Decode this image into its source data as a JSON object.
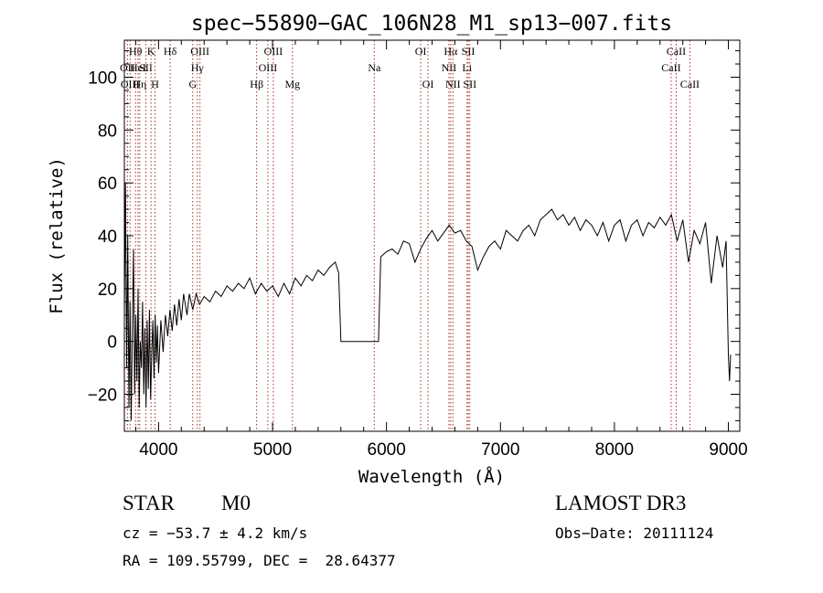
{
  "chart_data": {
    "type": "line",
    "title": "spec−55890−GAC_106N28_M1_sp13−007.fits",
    "xlabel": "Wavelength (Å)",
    "ylabel": "Flux (relative)",
    "xlim": [
      3700,
      9100
    ],
    "ylim": [
      -34,
      114
    ],
    "xticks": [
      4000,
      5000,
      6000,
      7000,
      8000,
      9000
    ],
    "yticks": [
      -20,
      0,
      20,
      40,
      60,
      80,
      100
    ],
    "grid": false,
    "series": [
      {
        "color": "#000000",
        "points": [
          [
            3700,
            10
          ],
          [
            3710,
            60
          ],
          [
            3720,
            -10
          ],
          [
            3730,
            40
          ],
          [
            3740,
            -25
          ],
          [
            3750,
            15
          ],
          [
            3760,
            -30
          ],
          [
            3770,
            5
          ],
          [
            3780,
            35
          ],
          [
            3790,
            -20
          ],
          [
            3800,
            10
          ],
          [
            3810,
            -15
          ],
          [
            3820,
            20
          ],
          [
            3830,
            -25
          ],
          [
            3840,
            0
          ],
          [
            3850,
            -10
          ],
          [
            3860,
            15
          ],
          [
            3870,
            -20
          ],
          [
            3880,
            5
          ],
          [
            3890,
            -25
          ],
          [
            3900,
            8
          ],
          [
            3910,
            -18
          ],
          [
            3920,
            12
          ],
          [
            3930,
            -22
          ],
          [
            3940,
            -5
          ],
          [
            3950,
            8
          ],
          [
            3960,
            -14
          ],
          [
            3970,
            10
          ],
          [
            3980,
            -8
          ],
          [
            3990,
            6
          ],
          [
            4000,
            -12
          ],
          [
            4020,
            8
          ],
          [
            4040,
            -4
          ],
          [
            4060,
            10
          ],
          [
            4080,
            2
          ],
          [
            4100,
            12
          ],
          [
            4120,
            4
          ],
          [
            4140,
            14
          ],
          [
            4160,
            6
          ],
          [
            4180,
            16
          ],
          [
            4200,
            8
          ],
          [
            4220,
            18
          ],
          [
            4250,
            10
          ],
          [
            4270,
            18
          ],
          [
            4300,
            12
          ],
          [
            4330,
            18
          ],
          [
            4360,
            14
          ],
          [
            4400,
            17
          ],
          [
            4450,
            15
          ],
          [
            4500,
            19
          ],
          [
            4550,
            17
          ],
          [
            4600,
            21
          ],
          [
            4650,
            19
          ],
          [
            4700,
            22
          ],
          [
            4750,
            20
          ],
          [
            4800,
            24
          ],
          [
            4850,
            18
          ],
          [
            4900,
            22
          ],
          [
            4950,
            19
          ],
          [
            5000,
            21
          ],
          [
            5050,
            17
          ],
          [
            5100,
            22
          ],
          [
            5150,
            18
          ],
          [
            5200,
            24
          ],
          [
            5250,
            21
          ],
          [
            5300,
            25
          ],
          [
            5350,
            23
          ],
          [
            5400,
            27
          ],
          [
            5450,
            25
          ],
          [
            5500,
            28
          ],
          [
            5550,
            30
          ],
          [
            5580,
            26
          ],
          [
            5600,
            0
          ],
          [
            5900,
            0
          ],
          [
            5930,
            0
          ],
          [
            5950,
            32
          ],
          [
            6000,
            34
          ],
          [
            6050,
            35
          ],
          [
            6100,
            33
          ],
          [
            6150,
            38
          ],
          [
            6200,
            37
          ],
          [
            6250,
            30
          ],
          [
            6300,
            35
          ],
          [
            6350,
            39
          ],
          [
            6400,
            42
          ],
          [
            6450,
            38
          ],
          [
            6500,
            41
          ],
          [
            6550,
            44
          ],
          [
            6600,
            41
          ],
          [
            6650,
            42
          ],
          [
            6700,
            38
          ],
          [
            6750,
            36
          ],
          [
            6800,
            27
          ],
          [
            6850,
            32
          ],
          [
            6900,
            36
          ],
          [
            6950,
            38
          ],
          [
            7000,
            35
          ],
          [
            7050,
            42
          ],
          [
            7100,
            40
          ],
          [
            7150,
            38
          ],
          [
            7200,
            42
          ],
          [
            7250,
            44
          ],
          [
            7300,
            40
          ],
          [
            7350,
            46
          ],
          [
            7400,
            48
          ],
          [
            7450,
            50
          ],
          [
            7500,
            46
          ],
          [
            7550,
            48
          ],
          [
            7600,
            44
          ],
          [
            7650,
            47
          ],
          [
            7700,
            42
          ],
          [
            7750,
            46
          ],
          [
            7800,
            44
          ],
          [
            7850,
            40
          ],
          [
            7900,
            45
          ],
          [
            7950,
            38
          ],
          [
            8000,
            44
          ],
          [
            8050,
            46
          ],
          [
            8100,
            38
          ],
          [
            8150,
            44
          ],
          [
            8200,
            46
          ],
          [
            8250,
            40
          ],
          [
            8300,
            45
          ],
          [
            8350,
            43
          ],
          [
            8400,
            47
          ],
          [
            8450,
            44
          ],
          [
            8500,
            48
          ],
          [
            8550,
            38
          ],
          [
            8600,
            46
          ],
          [
            8650,
            30
          ],
          [
            8700,
            42
          ],
          [
            8750,
            37
          ],
          [
            8800,
            45
          ],
          [
            8850,
            22
          ],
          [
            8900,
            40
          ],
          [
            8950,
            28
          ],
          [
            8980,
            38
          ],
          [
            9000,
            -5
          ],
          [
            9010,
            -15
          ],
          [
            9020,
            -5
          ]
        ]
      }
    ],
    "line_color": "#a0322d",
    "lines": [
      {
        "wl": 3727,
        "label": "OII",
        "row": 1
      },
      {
        "wl": 3750,
        "label": "OIII",
        "row": 2
      },
      {
        "wl": 3798,
        "label": "Hθ",
        "row": 0
      },
      {
        "wl": 3820,
        "label": "HeI",
        "row": 1
      },
      {
        "wl": 3835,
        "label": "Hη",
        "row": 2
      },
      {
        "wl": 3889,
        "label": "SII",
        "row": 1
      },
      {
        "wl": 3934,
        "label": "K",
        "row": 0
      },
      {
        "wl": 3969,
        "label": "H",
        "row": 2
      },
      {
        "wl": 4102,
        "label": "Hδ",
        "row": 0
      },
      {
        "wl": 4300,
        "label": "G",
        "row": 2
      },
      {
        "wl": 4340,
        "label": "Hγ",
        "row": 1
      },
      {
        "wl": 4363,
        "label": "OIII",
        "row": 0
      },
      {
        "wl": 4861,
        "label": "Hβ",
        "row": 2
      },
      {
        "wl": 4959,
        "label": "OIII",
        "row": 1
      },
      {
        "wl": 5007,
        "label": "OIII",
        "row": 0
      },
      {
        "wl": 5175,
        "label": "Mg",
        "row": 2
      },
      {
        "wl": 5893,
        "label": "Na",
        "row": 1
      },
      {
        "wl": 6300,
        "label": "OI",
        "row": 0
      },
      {
        "wl": 6364,
        "label": "OI",
        "row": 2
      },
      {
        "wl": 6548,
        "label": "NII",
        "row": 1
      },
      {
        "wl": 6563,
        "label": "Hα",
        "row": 0
      },
      {
        "wl": 6583,
        "label": "NII",
        "row": 2
      },
      {
        "wl": 6707,
        "label": "Li",
        "row": 1
      },
      {
        "wl": 6717,
        "label": "SII",
        "row": 0
      },
      {
        "wl": 6731,
        "label": "SII",
        "row": 2
      },
      {
        "wl": 8498,
        "label": "CaII",
        "row": 1
      },
      {
        "wl": 8542,
        "label": "CaII",
        "row": 0
      },
      {
        "wl": 8662,
        "label": "CaII",
        "row": 2
      }
    ]
  },
  "info": {
    "class": "STAR",
    "subclass": "M0",
    "survey": "LAMOST DR3",
    "cz": "cz = −53.7 ± 4.2 km/s",
    "obsdate": "Obs−Date: 20111124",
    "radec": "RA = 109.55799, DEC =  28.64377"
  }
}
